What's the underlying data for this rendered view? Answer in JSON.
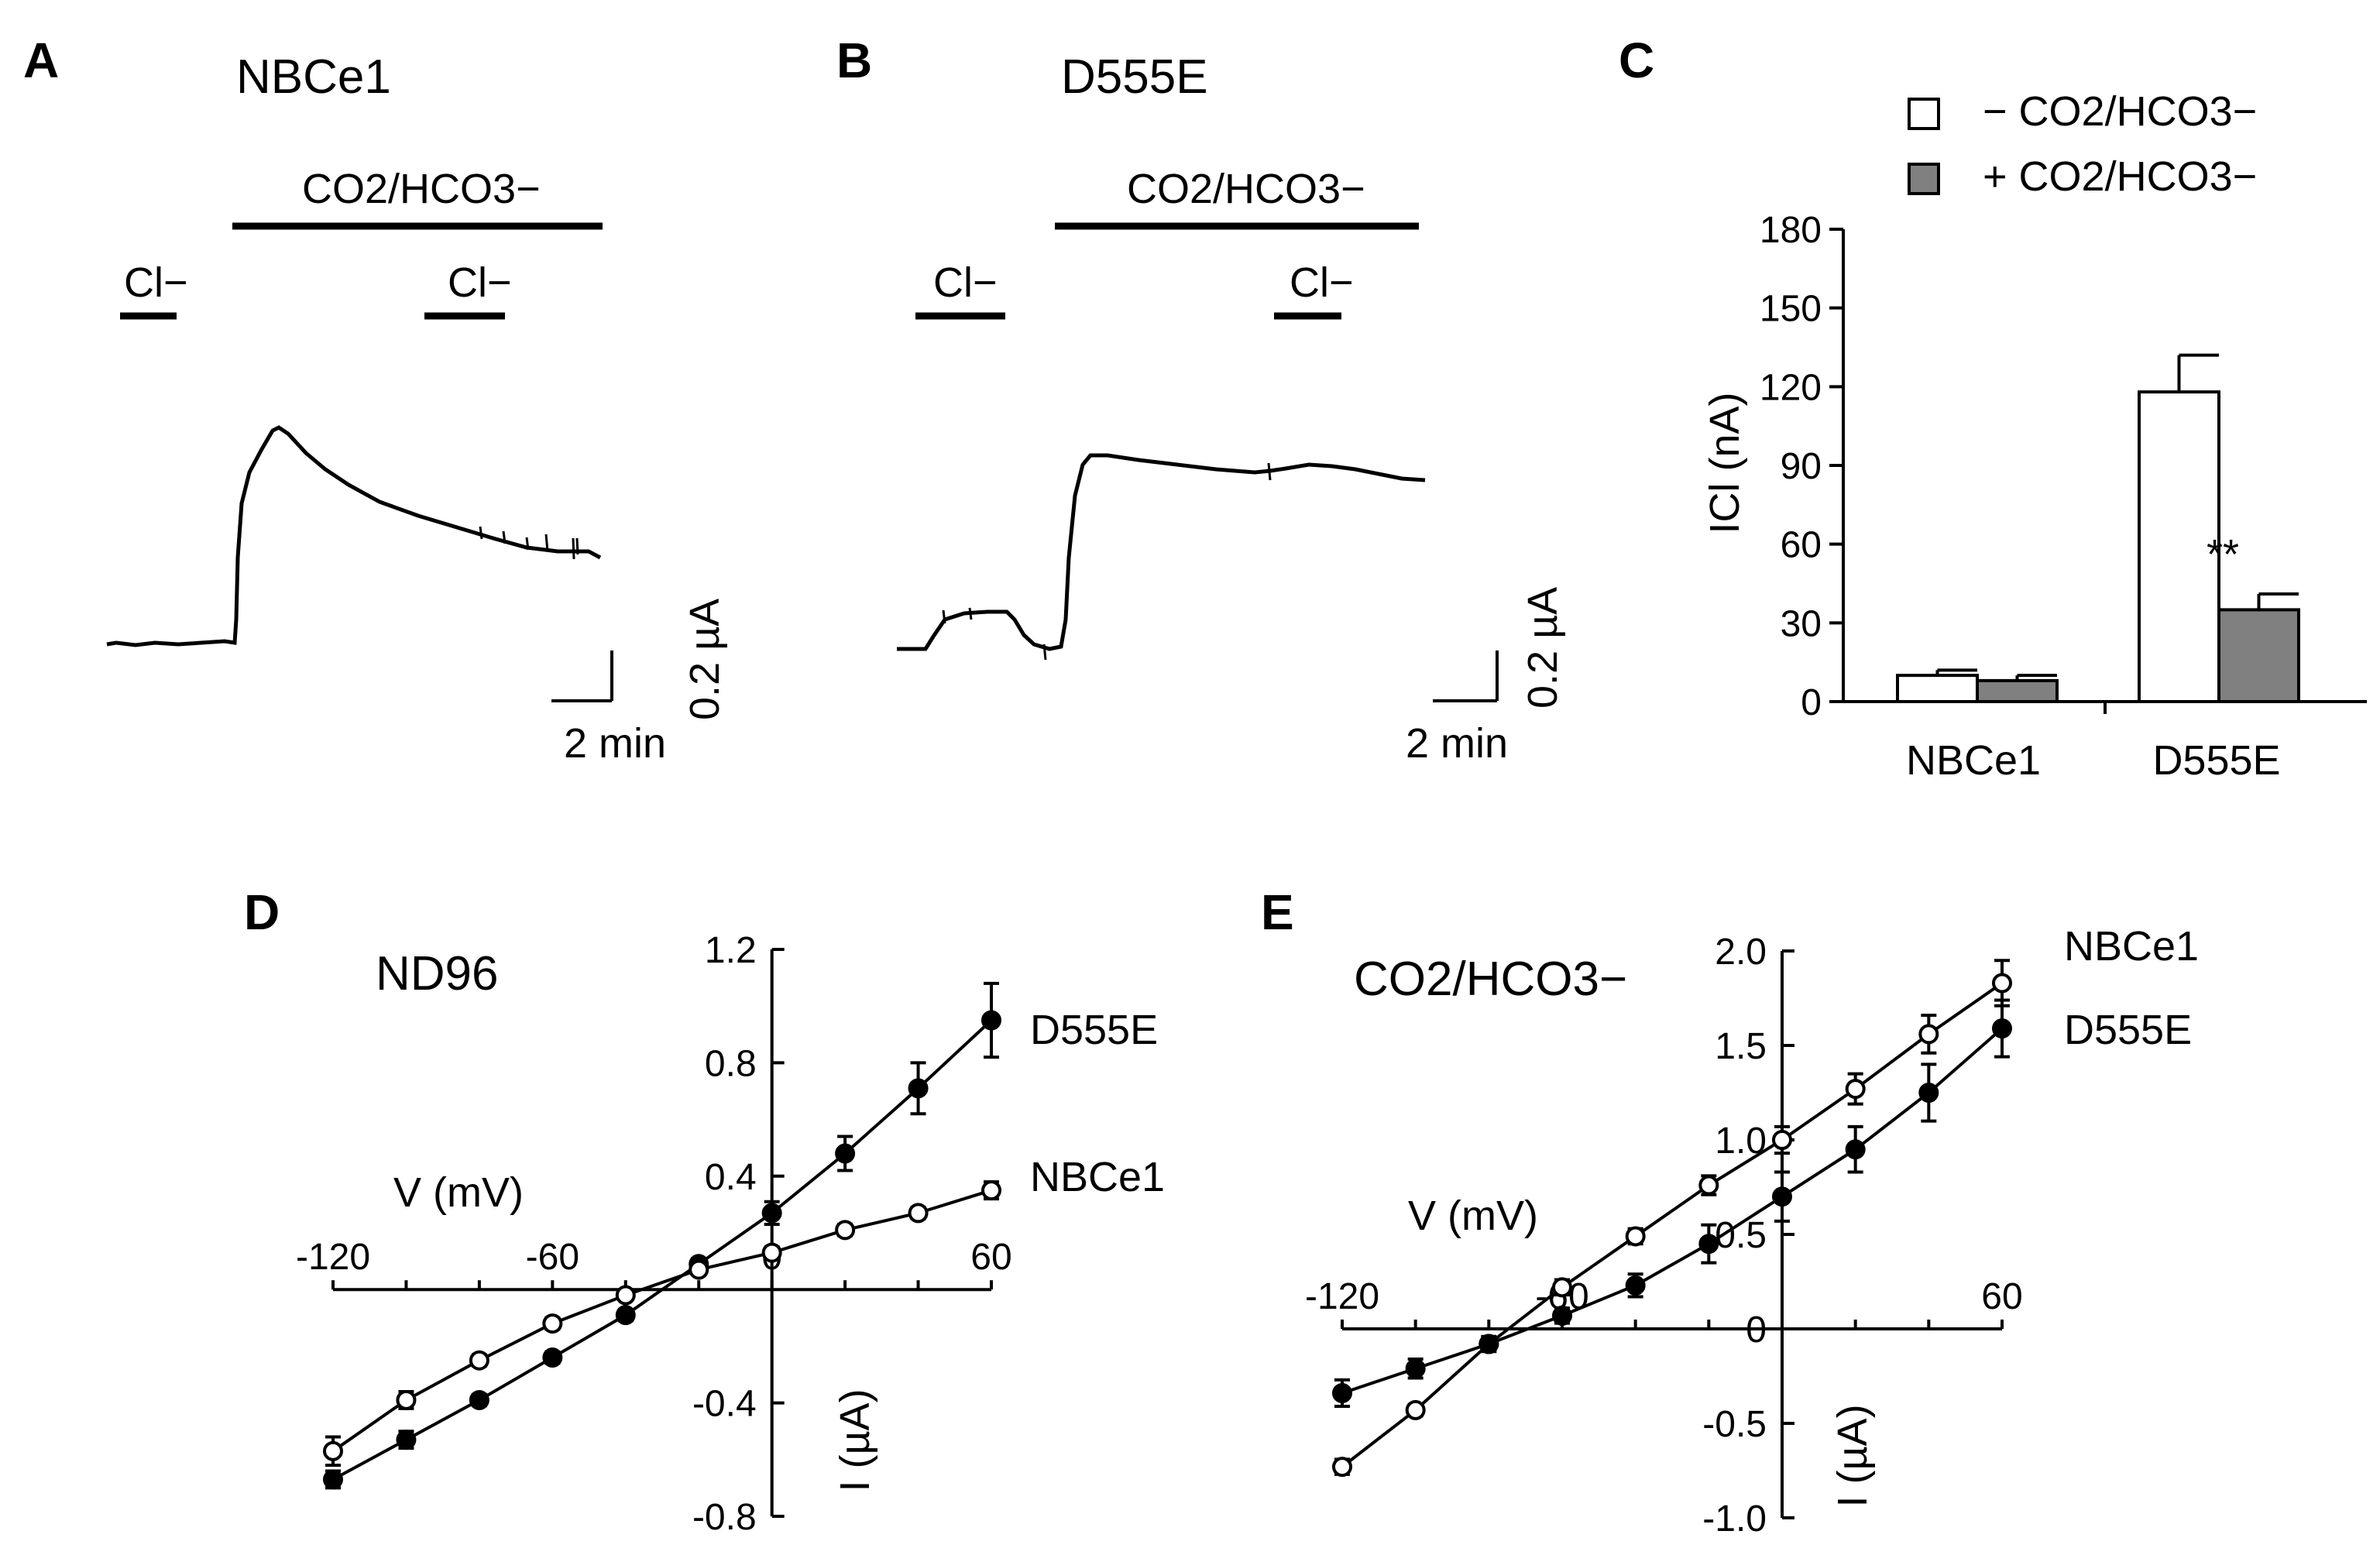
{
  "colors": {
    "ink": "#000000",
    "open_fill": "#ffffff",
    "gray_bar": "#808080"
  },
  "panel_a": {
    "letter": "A",
    "title": "NBCe1",
    "bath_label": "CO2/HCO3−",
    "cl_label": "Cl−",
    "scale_time": "2 min",
    "scale_current": "0.2 µA"
  },
  "panel_b": {
    "letter": "B",
    "title": "D555E",
    "bath_label": "CO2/HCO3−",
    "cl_label": "Cl−",
    "scale_time": "2 min",
    "scale_current": "0.2 µA"
  },
  "chart_data": [
    {
      "panel": "C",
      "type": "bar",
      "categories": [
        "NBCe1",
        "D555E"
      ],
      "series": [
        {
          "name": "− CO2/HCO3−",
          "values": [
            10,
            118
          ],
          "errors": [
            2,
            14
          ],
          "color": "#ffffff"
        },
        {
          "name": "+ CO2/HCO3−",
          "values": [
            8,
            35
          ],
          "errors": [
            2,
            6
          ],
          "color": "#808080"
        }
      ],
      "annotation": "**",
      "ylabel": "ICl (nA)",
      "ylim": [
        0,
        180
      ],
      "yticks": [
        "0",
        "30",
        "60",
        "90",
        "120",
        "150",
        "180"
      ],
      "legend": "top-right"
    },
    {
      "panel": "D",
      "type": "line",
      "title": "ND96",
      "xlabel": "V (mV)",
      "ylabel": "I (µA)",
      "xlim": [
        -120,
        60
      ],
      "ylim": [
        -0.8,
        1.2
      ],
      "xticks": [
        "-120",
        "-60",
        "0",
        "60"
      ],
      "yticks": [
        "-0.8",
        "-0.4",
        "0.4",
        "0.8",
        "1.2"
      ],
      "series": [
        {
          "name": "D555E",
          "marker": "filled",
          "x": [
            -120,
            -100,
            -80,
            -60,
            -40,
            -20,
            0,
            20,
            40,
            60
          ],
          "y": [
            -0.67,
            -0.53,
            -0.39,
            -0.24,
            -0.09,
            0.09,
            0.27,
            0.48,
            0.71,
            0.95
          ],
          "err": [
            0.03,
            0.03,
            0.02,
            0.02,
            0.02,
            0.02,
            0.04,
            0.06,
            0.09,
            0.13
          ]
        },
        {
          "name": "NBCe1",
          "marker": "open",
          "x": [
            -120,
            -100,
            -80,
            -60,
            -40,
            -20,
            0,
            20,
            40,
            60
          ],
          "y": [
            -0.57,
            -0.39,
            -0.25,
            -0.12,
            -0.02,
            0.07,
            0.13,
            0.21,
            0.27,
            0.35
          ],
          "err": [
            0.05,
            0.03,
            0.02,
            0.02,
            0.01,
            0.01,
            0.02,
            0.02,
            0.02,
            0.03
          ]
        }
      ]
    },
    {
      "panel": "E",
      "type": "line",
      "title": "CO2/HCO3−",
      "xlabel": "V (mV)",
      "ylabel": "I (µA)",
      "xlim": [
        -120,
        60
      ],
      "ylim": [
        -1.0,
        2.0
      ],
      "xticks": [
        "-120",
        "-60",
        "60"
      ],
      "yticks": [
        "-1.0",
        "-0.5",
        "0",
        "0.5",
        "1.0",
        "1.5",
        "2.0"
      ],
      "series": [
        {
          "name": "NBCe1",
          "marker": "open",
          "x": [
            -120,
            -100,
            -80,
            -60,
            -40,
            -20,
            0,
            20,
            40,
            60
          ],
          "y": [
            -0.73,
            -0.43,
            -0.08,
            0.22,
            0.49,
            0.76,
            1.0,
            1.27,
            1.56,
            1.83
          ],
          "err": [
            0.04,
            0.03,
            0.03,
            0.04,
            0.04,
            0.05,
            0.07,
            0.08,
            0.1,
            0.12
          ]
        },
        {
          "name": "D555E",
          "marker": "filled",
          "x": [
            -120,
            -100,
            -80,
            -60,
            -40,
            -20,
            0,
            20,
            40,
            60
          ],
          "y": [
            -0.34,
            -0.21,
            -0.08,
            0.07,
            0.23,
            0.45,
            0.7,
            0.95,
            1.25,
            1.59
          ],
          "err": [
            0.07,
            0.05,
            0.04,
            0.04,
            0.06,
            0.1,
            0.13,
            0.12,
            0.15,
            0.15
          ]
        }
      ]
    }
  ]
}
